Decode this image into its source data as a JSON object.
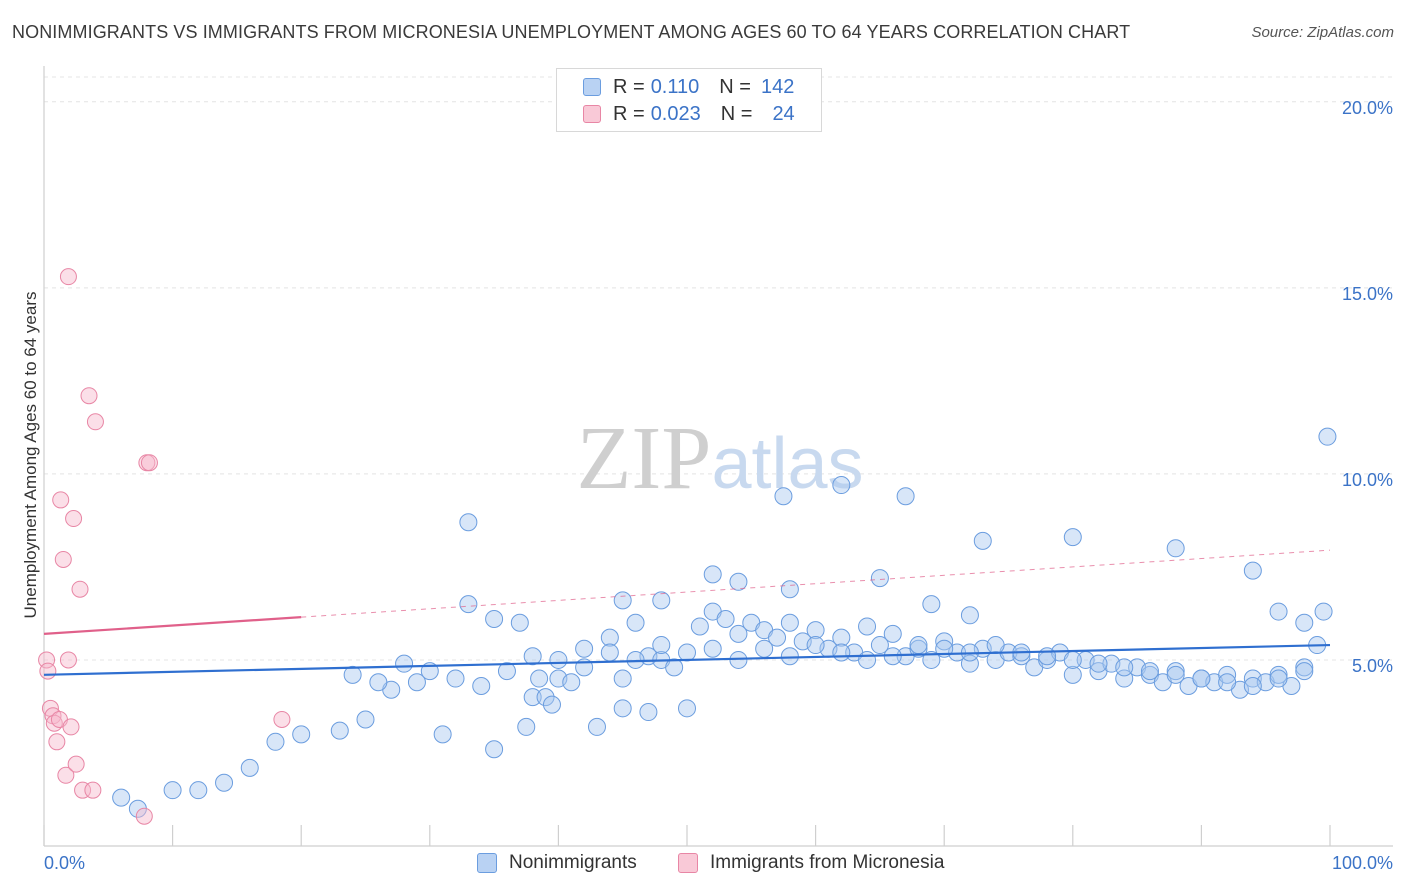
{
  "chart_data": {
    "type": "scatter",
    "title": "NONIMMIGRANTS VS IMMIGRANTS FROM MICRONESIA UNEMPLOYMENT AMONG AGES 60 TO 64 YEARS CORRELATION CHART",
    "source": "Source: ZipAtlas.com",
    "xlabel": "",
    "ylabel": "Unemployment Among Ages 60 to 64 years",
    "xlim": [
      0,
      100
    ],
    "ylim": [
      0,
      20.8
    ],
    "x_tick_labels": [
      "0.0%",
      "100.0%"
    ],
    "y_ticks": [
      5,
      10,
      15,
      20
    ],
    "y_tick_labels": [
      "5.0%",
      "10.0%",
      "15.0%",
      "20.0%"
    ],
    "grid": true,
    "watermark": "ZIPatlas",
    "legend_top": [
      {
        "r_label": "R =",
        "r_value": "0.110",
        "n_label": "N =",
        "n_value": "142"
      },
      {
        "r_label": "R =",
        "r_value": "0.023",
        "n_label": "N =",
        "n_value": "24"
      }
    ],
    "series": [
      {
        "name": "Nonimmigrants",
        "color": "#a9c7f0",
        "stroke": "#6b9ddf",
        "trend_color": "#2f6fd0",
        "trend": {
          "x": [
            0,
            100
          ],
          "y": [
            4.6,
            5.4
          ]
        },
        "points": [
          [
            6,
            1.3
          ],
          [
            7.3,
            1.0
          ],
          [
            10,
            1.5
          ],
          [
            12,
            1.5
          ],
          [
            14,
            1.7
          ],
          [
            16,
            2.1
          ],
          [
            18,
            2.8
          ],
          [
            20,
            3.0
          ],
          [
            23,
            3.1
          ],
          [
            25,
            3.4
          ],
          [
            27,
            4.2
          ],
          [
            29,
            4.4
          ],
          [
            31,
            3.0
          ],
          [
            33,
            8.7
          ],
          [
            35,
            2.6
          ],
          [
            37,
            6.0
          ],
          [
            37.5,
            3.2
          ],
          [
            38,
            4.0
          ],
          [
            39,
            4.0
          ],
          [
            40,
            4.5
          ],
          [
            41,
            4.4
          ],
          [
            42,
            5.3
          ],
          [
            43,
            3.2
          ],
          [
            44,
            5.6
          ],
          [
            45,
            4.5
          ],
          [
            46,
            6.0
          ],
          [
            47,
            5.1
          ],
          [
            48,
            5.0
          ],
          [
            49,
            4.8
          ],
          [
            50,
            3.7
          ],
          [
            51,
            5.9
          ],
          [
            52,
            6.3
          ],
          [
            53,
            6.1
          ],
          [
            54,
            5.7
          ],
          [
            55,
            6.0
          ],
          [
            56,
            5.8
          ],
          [
            57,
            5.6
          ],
          [
            58,
            6.0
          ],
          [
            59,
            5.5
          ],
          [
            60,
            5.8
          ],
          [
            61,
            5.3
          ],
          [
            62,
            5.6
          ],
          [
            63,
            5.2
          ],
          [
            64,
            5.9
          ],
          [
            65,
            5.4
          ],
          [
            66,
            5.7
          ],
          [
            67,
            5.1
          ],
          [
            68,
            5.3
          ],
          [
            69,
            5.0
          ],
          [
            70,
            5.5
          ],
          [
            71,
            5.2
          ],
          [
            72,
            4.9
          ],
          [
            73,
            5.3
          ],
          [
            74,
            5.0
          ],
          [
            75,
            5.2
          ],
          [
            76,
            5.1
          ],
          [
            77,
            4.8
          ],
          [
            78,
            5.0
          ],
          [
            79,
            5.2
          ],
          [
            80,
            4.6
          ],
          [
            81,
            5.0
          ],
          [
            82,
            4.7
          ],
          [
            83,
            4.9
          ],
          [
            84,
            4.5
          ],
          [
            85,
            4.8
          ],
          [
            86,
            4.6
          ],
          [
            87,
            4.4
          ],
          [
            88,
            4.7
          ],
          [
            89,
            4.3
          ],
          [
            90,
            4.5
          ],
          [
            91,
            4.4
          ],
          [
            92,
            4.6
          ],
          [
            93,
            4.2
          ],
          [
            94,
            4.5
          ],
          [
            95,
            4.4
          ],
          [
            96,
            4.6
          ],
          [
            97,
            4.3
          ],
          [
            98,
            4.8
          ],
          [
            99,
            5.4
          ],
          [
            99.5,
            6.3
          ],
          [
            99.8,
            11.0
          ],
          [
            57.5,
            9.4
          ],
          [
            62,
            9.7
          ],
          [
            67,
            9.4
          ],
          [
            73,
            8.2
          ],
          [
            80,
            8.3
          ],
          [
            88,
            8.0
          ],
          [
            94,
            7.4
          ],
          [
            96,
            6.3
          ],
          [
            98,
            6.0
          ],
          [
            33,
            6.5
          ],
          [
            35,
            6.1
          ],
          [
            45,
            6.6
          ],
          [
            48,
            6.6
          ],
          [
            52,
            7.3
          ],
          [
            54,
            7.1
          ],
          [
            58,
            6.9
          ],
          [
            65,
            7.2
          ],
          [
            69,
            6.5
          ],
          [
            72,
            6.2
          ],
          [
            24,
            4.6
          ],
          [
            26,
            4.4
          ],
          [
            28,
            4.9
          ],
          [
            30,
            4.7
          ],
          [
            32,
            4.5
          ],
          [
            34,
            4.3
          ],
          [
            36,
            4.7
          ],
          [
            38,
            5.1
          ],
          [
            40,
            5.0
          ],
          [
            42,
            4.8
          ],
          [
            44,
            5.2
          ],
          [
            46,
            5.0
          ],
          [
            48,
            5.4
          ],
          [
            50,
            5.2
          ],
          [
            52,
            5.3
          ],
          [
            54,
            5.0
          ],
          [
            56,
            5.3
          ],
          [
            58,
            5.1
          ],
          [
            60,
            5.4
          ],
          [
            62,
            5.2
          ],
          [
            64,
            5.0
          ],
          [
            66,
            5.1
          ],
          [
            68,
            5.4
          ],
          [
            70,
            5.3
          ],
          [
            72,
            5.2
          ],
          [
            74,
            5.4
          ],
          [
            76,
            5.2
          ],
          [
            78,
            5.1
          ],
          [
            80,
            5.0
          ],
          [
            82,
            4.9
          ],
          [
            84,
            4.8
          ],
          [
            86,
            4.7
          ],
          [
            88,
            4.6
          ],
          [
            90,
            4.5
          ],
          [
            92,
            4.4
          ],
          [
            94,
            4.3
          ],
          [
            96,
            4.5
          ],
          [
            98,
            4.7
          ],
          [
            45,
            3.7
          ],
          [
            47,
            3.6
          ],
          [
            38.5,
            4.5
          ],
          [
            39.5,
            3.8
          ]
        ]
      },
      {
        "name": "Immigrants from Micronesia",
        "color": "#f7b8cb",
        "stroke": "#e886a5",
        "trend_color": "#e0608a",
        "trend": {
          "x": [
            0,
            20
          ],
          "y": [
            5.7,
            6.15
          ]
        },
        "trend_dashed": {
          "x": [
            20,
            100
          ],
          "y": [
            6.15,
            7.95
          ]
        },
        "points": [
          [
            0.2,
            5.0
          ],
          [
            0.3,
            4.7
          ],
          [
            0.5,
            3.7
          ],
          [
            0.7,
            3.5
          ],
          [
            0.8,
            3.3
          ],
          [
            1.0,
            2.8
          ],
          [
            1.2,
            3.4
          ],
          [
            1.3,
            9.3
          ],
          [
            1.5,
            7.7
          ],
          [
            1.7,
            1.9
          ],
          [
            1.9,
            5.0
          ],
          [
            2.1,
            3.2
          ],
          [
            2.3,
            8.8
          ],
          [
            2.5,
            2.2
          ],
          [
            2.8,
            6.9
          ],
          [
            3.0,
            1.5
          ],
          [
            3.5,
            12.1
          ],
          [
            3.8,
            1.5
          ],
          [
            4.0,
            11.4
          ],
          [
            7.8,
            0.8
          ],
          [
            8.0,
            10.3
          ],
          [
            8.2,
            10.3
          ],
          [
            1.9,
            15.3
          ],
          [
            18.5,
            3.4
          ]
        ]
      }
    ]
  },
  "bottom_legend": [
    "Nonimmigrants",
    "Immigrants from Micronesia"
  ]
}
